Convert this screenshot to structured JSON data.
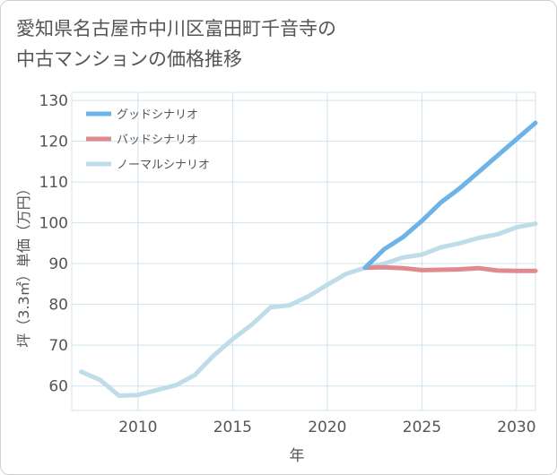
{
  "title_line1": "愛知県名古屋市中川区富田町千音寺の",
  "title_line2": "中古マンションの価格推移",
  "chart_data": {
    "type": "line",
    "xlabel": "年",
    "ylabel": "坪（3.3㎡）単価（万円）",
    "xlim": [
      2006.5,
      2031
    ],
    "ylim": [
      54,
      132
    ],
    "xticks": [
      2010,
      2015,
      2020,
      2025,
      2030
    ],
    "yticks": [
      60,
      70,
      80,
      90,
      100,
      110,
      120,
      130
    ],
    "grid": true,
    "legend_position": "top-left",
    "series": [
      {
        "name": "グッドシナリオ",
        "color": "#6cb4e8",
        "x": [
          2022,
          2023,
          2024,
          2025,
          2026,
          2027,
          2028,
          2029,
          2030,
          2031
        ],
        "y": [
          89,
          93.5,
          96.5,
          100.5,
          105,
          108.5,
          112.5,
          116.5,
          120.5,
          124.5
        ]
      },
      {
        "name": "バッドシナリオ",
        "color": "#e08a8f",
        "x": [
          2022,
          2023,
          2024,
          2025,
          2026,
          2027,
          2028,
          2029,
          2030,
          2031
        ],
        "y": [
          89,
          89.1,
          88.9,
          88.4,
          88.5,
          88.6,
          88.9,
          88.3,
          88.2,
          88.2
        ]
      },
      {
        "name": "ノーマルシナリオ",
        "color": "#bfdde9",
        "x": [
          2007,
          2008,
          2009,
          2010,
          2011,
          2012,
          2013,
          2014,
          2015,
          2016,
          2017,
          2018,
          2019,
          2020,
          2021,
          2022,
          2023,
          2024,
          2025,
          2026,
          2027,
          2028,
          2029,
          2030,
          2031
        ],
        "y": [
          63.5,
          61.5,
          57.6,
          57.8,
          59,
          60.2,
          62.7,
          67.5,
          71.5,
          75,
          79.3,
          79.8,
          82,
          84.8,
          87.5,
          89,
          90,
          91.5,
          92.2,
          94,
          95,
          96.3,
          97.2,
          98.9,
          99.8
        ]
      }
    ]
  }
}
